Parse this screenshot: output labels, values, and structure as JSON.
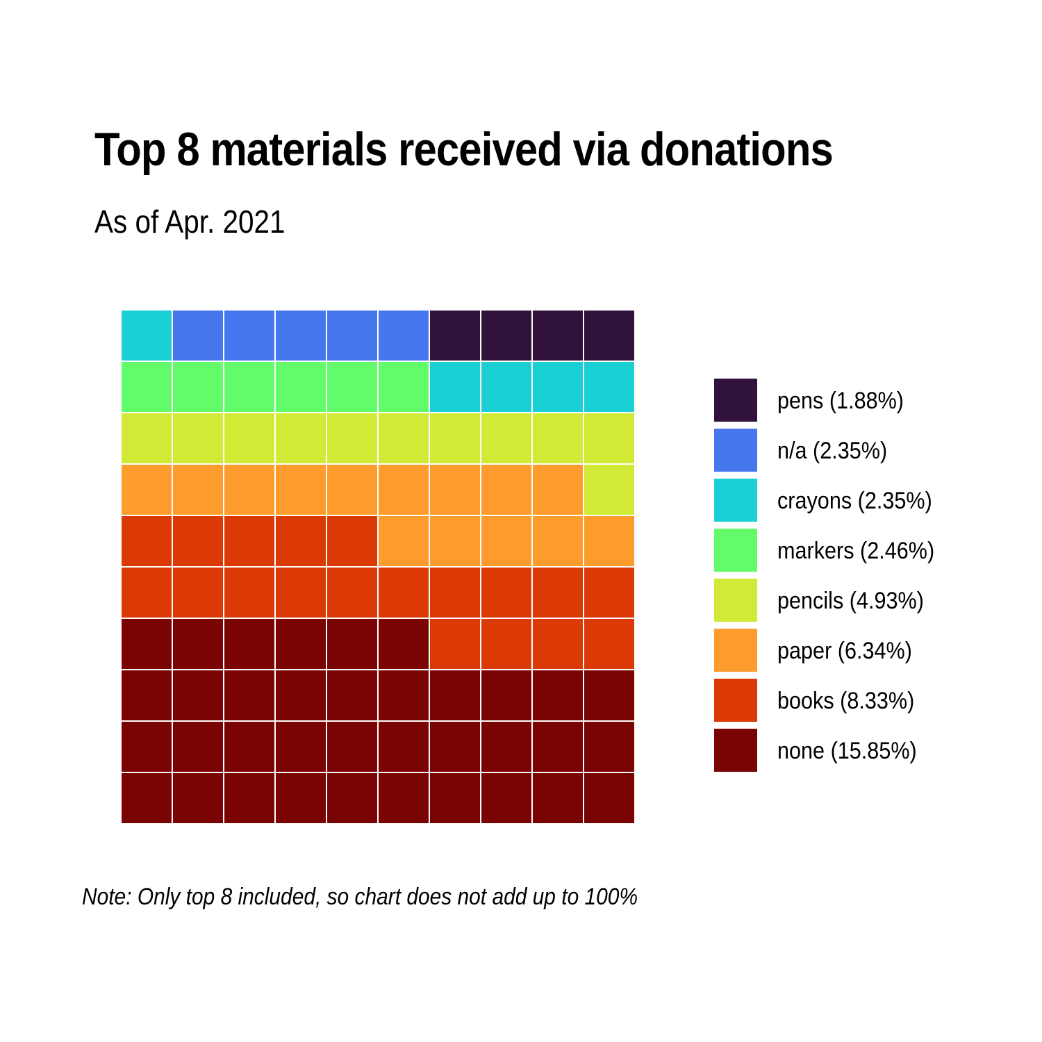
{
  "chart_data": {
    "type": "waffle",
    "title": "Top 8 materials received via donations",
    "subtitle": "As of Apr. 2021",
    "caption": "Note: Only top 8 included, so chart does not add up to 100%",
    "grid": {
      "rows": 10,
      "cols": 10
    },
    "legend_position": "right",
    "series": [
      {
        "name": "none",
        "label": "none (15.85%)",
        "percent": 15.85,
        "squares": 36,
        "color": "#7a0403"
      },
      {
        "name": "books",
        "label": "books (8.33%)",
        "percent": 8.33,
        "squares": 19,
        "color": "#db3a07"
      },
      {
        "name": "paper",
        "label": "paper (6.34%)",
        "percent": 6.34,
        "squares": 14,
        "color": "#fe9b2d"
      },
      {
        "name": "pencils",
        "label": "pencils (4.93%)",
        "percent": 4.93,
        "squares": 11,
        "color": "#d2e935"
      },
      {
        "name": "markers",
        "label": "markers (2.46%)",
        "percent": 2.46,
        "squares": 6,
        "color": "#62fc6b"
      },
      {
        "name": "crayons",
        "label": "crayons (2.35%)",
        "percent": 2.35,
        "squares": 5,
        "color": "#1bd0d5"
      },
      {
        "name": "n/a",
        "label": "n/a (2.35%)",
        "percent": 2.35,
        "squares": 5,
        "color": "#4777ef"
      },
      {
        "name": "pens",
        "label": "pens (1.88%)",
        "percent": 1.88,
        "squares": 4,
        "color": "#30123b"
      }
    ]
  }
}
